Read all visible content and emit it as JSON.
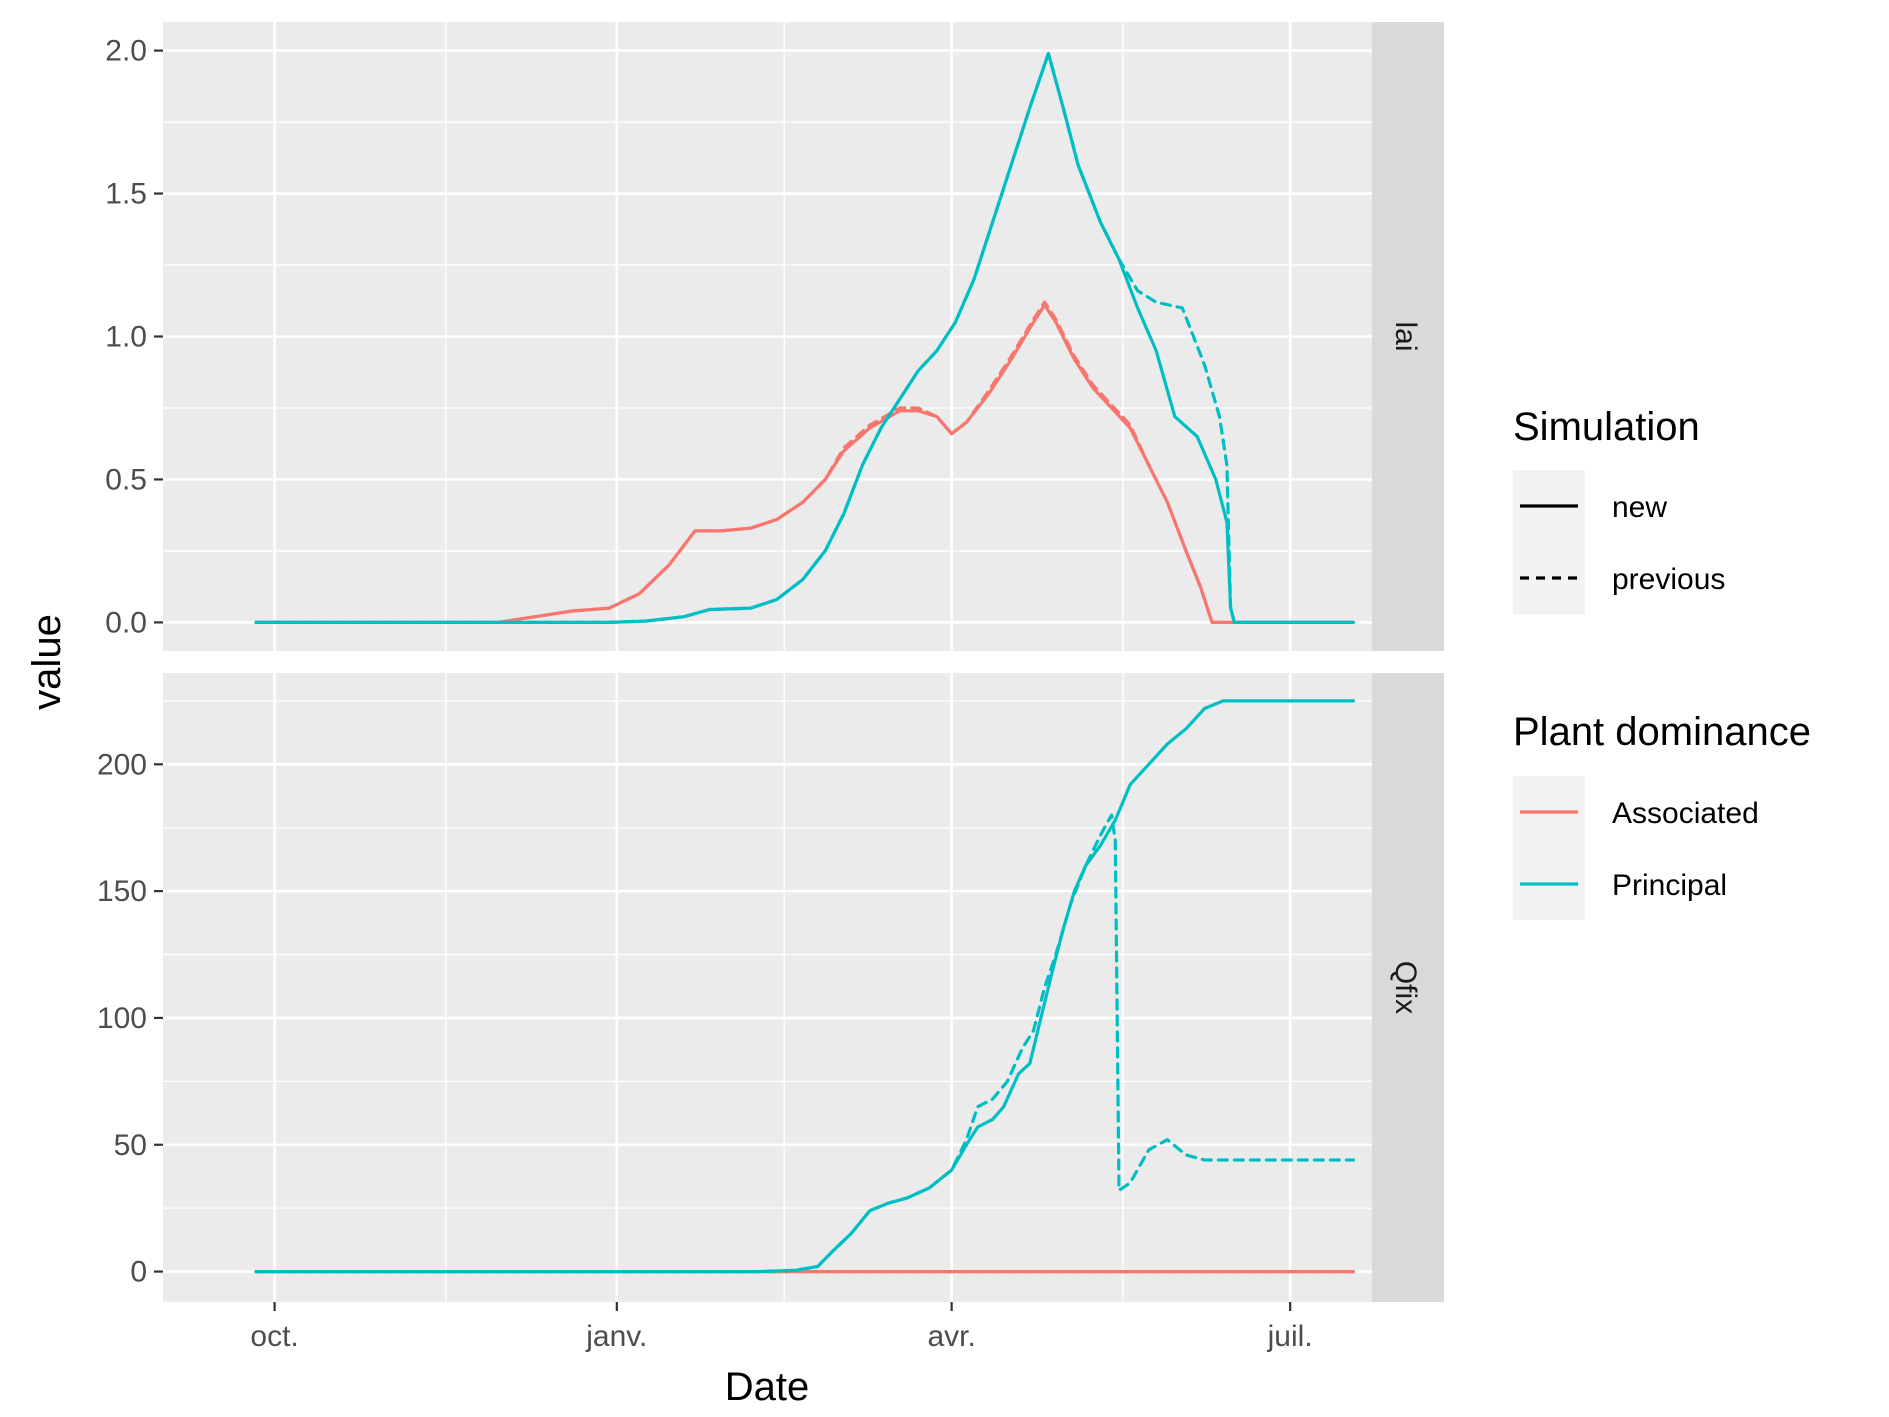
{
  "chart_data": {
    "type": "line",
    "facet": "rows",
    "xlabel": "Date",
    "ylabel": "value",
    "x_unit": "days since Sept 1",
    "x_range": [
      0,
      325
    ],
    "x_ticks": [
      {
        "label": "oct.",
        "x": 30
      },
      {
        "label": "janv.",
        "x": 122
      },
      {
        "label": "avr.",
        "x": 212
      },
      {
        "label": "juil.",
        "x": 303
      }
    ],
    "x_minor_ticks": [
      76,
      167,
      258
    ],
    "colors": {
      "Associated": "#F8766D",
      "Principal": "#00BFC4"
    },
    "panels": [
      {
        "strip": "lai",
        "ylim": [
          -0.1,
          2.1
        ],
        "y_ticks": [
          0.0,
          0.5,
          1.0,
          1.5,
          2.0
        ],
        "y_tick_labels": [
          "0.0",
          "0.5",
          "1.0",
          "1.5",
          "2.0"
        ],
        "y_minor_ticks": [
          0.25,
          0.75,
          1.25,
          1.75
        ],
        "series": [
          {
            "plant": "Principal",
            "simulation": "new",
            "points": [
              [
                25,
                0
              ],
              [
                120,
                0
              ],
              [
                130,
                0.005
              ],
              [
                140,
                0.02
              ],
              [
                147,
                0.045
              ],
              [
                158,
                0.05
              ],
              [
                165,
                0.08
              ],
              [
                172,
                0.15
              ],
              [
                178,
                0.25
              ],
              [
                183,
                0.38
              ],
              [
                188,
                0.55
              ],
              [
                193,
                0.68
              ],
              [
                198,
                0.78
              ],
              [
                203,
                0.88
              ],
              [
                208,
                0.95
              ],
              [
                213,
                1.05
              ],
              [
                218,
                1.2
              ],
              [
                223,
                1.4
              ],
              [
                228,
                1.6
              ],
              [
                233,
                1.8
              ],
              [
                238,
                1.99
              ],
              [
                242,
                1.8
              ],
              [
                246,
                1.6
              ],
              [
                252,
                1.4
              ],
              [
                257,
                1.27
              ],
              [
                262,
                1.1
              ],
              [
                267,
                0.95
              ],
              [
                272,
                0.72
              ],
              [
                278,
                0.65
              ],
              [
                283,
                0.5
              ],
              [
                286,
                0.35
              ],
              [
                287,
                0.05
              ],
              [
                288,
                0
              ],
              [
                300,
                0
              ],
              [
                320,
                0
              ]
            ]
          },
          {
            "plant": "Principal",
            "simulation": "previous",
            "points": [
              [
                25,
                0
              ],
              [
                120,
                0
              ],
              [
                130,
                0.005
              ],
              [
                140,
                0.02
              ],
              [
                147,
                0.045
              ],
              [
                158,
                0.05
              ],
              [
                165,
                0.08
              ],
              [
                172,
                0.15
              ],
              [
                178,
                0.25
              ],
              [
                183,
                0.38
              ],
              [
                188,
                0.55
              ],
              [
                193,
                0.68
              ],
              [
                198,
                0.78
              ],
              [
                203,
                0.88
              ],
              [
                208,
                0.95
              ],
              [
                213,
                1.05
              ],
              [
                218,
                1.2
              ],
              [
                223,
                1.4
              ],
              [
                228,
                1.6
              ],
              [
                233,
                1.8
              ],
              [
                238,
                1.99
              ],
              [
                242,
                1.8
              ],
              [
                246,
                1.6
              ],
              [
                252,
                1.4
              ],
              [
                257,
                1.27
              ],
              [
                262,
                1.16
              ],
              [
                267,
                1.12
              ],
              [
                274,
                1.1
              ],
              [
                280,
                0.9
              ],
              [
                284,
                0.72
              ],
              [
                286,
                0.55
              ],
              [
                287,
                0.05
              ],
              [
                288,
                0
              ],
              [
                300,
                0
              ],
              [
                320,
                0
              ]
            ]
          },
          {
            "plant": "Associated",
            "simulation": "new",
            "points": [
              [
                25,
                0
              ],
              [
                90,
                0
              ],
              [
                100,
                0.02
              ],
              [
                110,
                0.04
              ],
              [
                120,
                0.05
              ],
              [
                128,
                0.1
              ],
              [
                136,
                0.2
              ],
              [
                143,
                0.32
              ],
              [
                150,
                0.32
              ],
              [
                158,
                0.33
              ],
              [
                165,
                0.36
              ],
              [
                172,
                0.42
              ],
              [
                178,
                0.5
              ],
              [
                183,
                0.6
              ],
              [
                190,
                0.68
              ],
              [
                198,
                0.74
              ],
              [
                203,
                0.74
              ],
              [
                208,
                0.72
              ],
              [
                212,
                0.66
              ],
              [
                216,
                0.7
              ],
              [
                222,
                0.8
              ],
              [
                228,
                0.92
              ],
              [
                234,
                1.05
              ],
              [
                237,
                1.11
              ],
              [
                240,
                1.05
              ],
              [
                245,
                0.92
              ],
              [
                250,
                0.82
              ],
              [
                255,
                0.75
              ],
              [
                260,
                0.68
              ],
              [
                265,
                0.55
              ],
              [
                270,
                0.42
              ],
              [
                275,
                0.25
              ],
              [
                279,
                0.12
              ],
              [
                282,
                0
              ],
              [
                288,
                0
              ],
              [
                320,
                0
              ]
            ]
          },
          {
            "plant": "Associated",
            "simulation": "previous",
            "points": [
              [
                25,
                0
              ],
              [
                90,
                0
              ],
              [
                100,
                0.02
              ],
              [
                110,
                0.04
              ],
              [
                120,
                0.05
              ],
              [
                128,
                0.1
              ],
              [
                136,
                0.2
              ],
              [
                143,
                0.32
              ],
              [
                150,
                0.32
              ],
              [
                158,
                0.33
              ],
              [
                165,
                0.36
              ],
              [
                172,
                0.42
              ],
              [
                178,
                0.5
              ],
              [
                183,
                0.61
              ],
              [
                190,
                0.69
              ],
              [
                198,
                0.75
              ],
              [
                203,
                0.75
              ],
              [
                208,
                0.72
              ],
              [
                212,
                0.66
              ],
              [
                216,
                0.7
              ],
              [
                222,
                0.81
              ],
              [
                228,
                0.93
              ],
              [
                234,
                1.06
              ],
              [
                237,
                1.12
              ],
              [
                240,
                1.06
              ],
              [
                245,
                0.93
              ],
              [
                250,
                0.83
              ],
              [
                255,
                0.76
              ],
              [
                260,
                0.69
              ],
              [
                265,
                0.55
              ],
              [
                270,
                0.42
              ],
              [
                275,
                0.25
              ],
              [
                279,
                0.12
              ],
              [
                282,
                0
              ],
              [
                288,
                0
              ],
              [
                320,
                0
              ]
            ]
          }
        ]
      },
      {
        "strip": "Qfix",
        "ylim": [
          -12,
          236
        ],
        "y_ticks": [
          0,
          50,
          100,
          150,
          200
        ],
        "y_tick_labels": [
          "0",
          "50",
          "100",
          "150",
          "200"
        ],
        "y_minor_ticks": [
          25,
          75,
          125,
          175,
          225
        ],
        "series": [
          {
            "plant": "Principal",
            "simulation": "new",
            "points": [
              [
                25,
                0
              ],
              [
                160,
                0
              ],
              [
                170,
                0.5
              ],
              [
                176,
                2
              ],
              [
                180,
                8
              ],
              [
                185,
                15
              ],
              [
                190,
                24
              ],
              [
                195,
                27
              ],
              [
                200,
                29
              ],
              [
                206,
                33
              ],
              [
                212,
                40
              ],
              [
                216,
                50
              ],
              [
                219,
                57
              ],
              [
                223,
                60
              ],
              [
                226,
                65
              ],
              [
                230,
                78
              ],
              [
                233,
                82
              ],
              [
                236,
                100
              ],
              [
                239,
                118
              ],
              [
                242,
                135
              ],
              [
                245,
                150
              ],
              [
                248,
                160
              ],
              [
                252,
                168
              ],
              [
                256,
                178
              ],
              [
                260,
                192
              ],
              [
                265,
                200
              ],
              [
                270,
                208
              ],
              [
                275,
                214
              ],
              [
                280,
                222
              ],
              [
                285,
                225
              ],
              [
                300,
                225
              ],
              [
                320,
                225
              ]
            ]
          },
          {
            "plant": "Principal",
            "simulation": "previous",
            "points": [
              [
                25,
                0
              ],
              [
                160,
                0
              ],
              [
                170,
                0.5
              ],
              [
                176,
                2
              ],
              [
                180,
                8
              ],
              [
                185,
                15
              ],
              [
                190,
                24
              ],
              [
                195,
                27
              ],
              [
                200,
                29
              ],
              [
                206,
                33
              ],
              [
                212,
                40
              ],
              [
                216,
                52
              ],
              [
                219,
                65
              ],
              [
                223,
                68
              ],
              [
                227,
                75
              ],
              [
                231,
                88
              ],
              [
                234,
                95
              ],
              [
                237,
                112
              ],
              [
                240,
                125
              ],
              [
                244,
                145
              ],
              [
                248,
                160
              ],
              [
                252,
                172
              ],
              [
                255,
                180
              ],
              [
                256,
                170
              ],
              [
                257,
                32
              ],
              [
                260,
                35
              ],
              [
                265,
                48
              ],
              [
                270,
                52
              ],
              [
                275,
                46
              ],
              [
                280,
                44
              ],
              [
                300,
                44
              ],
              [
                320,
                44
              ]
            ]
          },
          {
            "plant": "Associated",
            "simulation": "new",
            "points": [
              [
                25,
                0
              ],
              [
                320,
                0
              ]
            ]
          },
          {
            "plant": "Associated",
            "simulation": "previous",
            "points": [
              [
                25,
                0
              ],
              [
                320,
                0
              ]
            ]
          }
        ]
      }
    ],
    "legends": [
      {
        "title": "Simulation",
        "kind": "linetype",
        "entries": [
          "new",
          "previous"
        ]
      },
      {
        "title": "Plant dominance",
        "kind": "color",
        "entries": [
          "Associated",
          "Principal"
        ]
      }
    ]
  }
}
